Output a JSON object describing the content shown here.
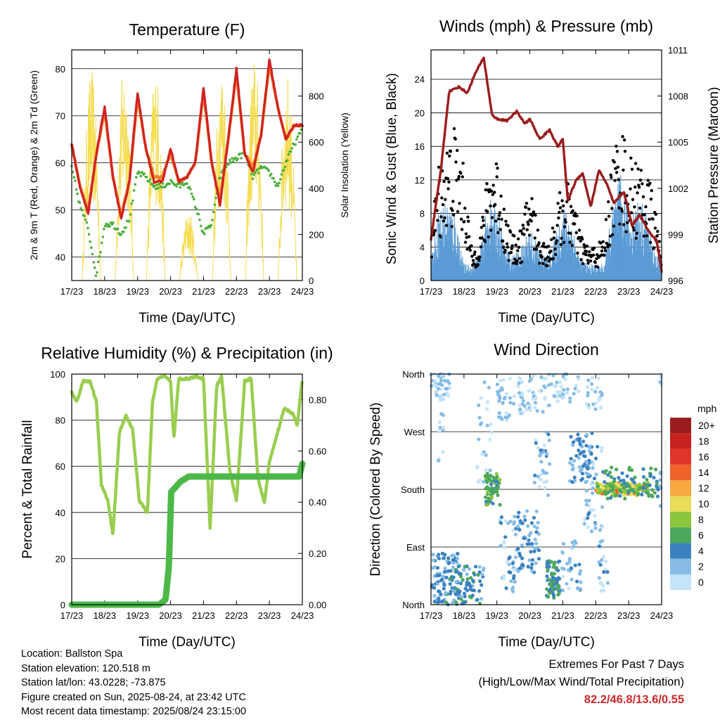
{
  "x_ticks": [
    "17/23",
    "18/23",
    "19/23",
    "20/23",
    "21/23",
    "22/23",
    "23/23",
    "24/23"
  ],
  "x_title": "Time (Day/UTC)",
  "colors": {
    "temp_red": "#d02222",
    "temp_orange": "#f0822a",
    "dewpoint_green": "#4caf3a",
    "solar_yellow": "#f5dc50",
    "wind_blue": "#5b9bd5",
    "gust_black": "#000000",
    "pressure_maroon": "#9b1c1c",
    "rh_green": "#9acd50",
    "precip_green": "#4cb848",
    "extremes_red": "#cc2a2a"
  },
  "chart_data": [
    {
      "id": "temperature",
      "type": "line",
      "title": "Temperature (F)",
      "ylabel": "2m & 9m T (Red, Orange) & 2m Td (Green)",
      "y2label": "Solar Insolation (Yellow)",
      "xlabel": "Time (Day/UTC)",
      "x": [
        0,
        0.25,
        0.5,
        0.75,
        1.0,
        1.25,
        1.5,
        1.75,
        2.0,
        2.25,
        2.5,
        2.75,
        3.0,
        3.25,
        3.5,
        3.75,
        4.0,
        4.25,
        4.5,
        4.75,
        5.0,
        5.25,
        5.5,
        5.75,
        6.0,
        6.25,
        6.5,
        6.75,
        7.0
      ],
      "ylim": [
        35,
        84
      ],
      "yticks": [
        40,
        50,
        60,
        70,
        80
      ],
      "y2lim": [
        0,
        1000
      ],
      "y2ticks": [
        0,
        200,
        400,
        600,
        800
      ],
      "series": [
        {
          "name": "2m T",
          "color": "#d02222",
          "values": [
            64,
            55,
            49,
            62,
            72,
            57,
            48,
            56,
            75,
            63,
            56,
            56,
            63,
            56,
            57,
            60,
            76,
            60,
            51,
            65,
            80,
            62,
            58,
            66,
            82,
            72,
            65,
            68,
            68
          ]
        },
        {
          "name": "9m T",
          "color": "#f0822a",
          "values": [
            64,
            55,
            50,
            62,
            71,
            57,
            49,
            56,
            74,
            63,
            57,
            57,
            62,
            56,
            57,
            60,
            75,
            60,
            52,
            65,
            79,
            62,
            59,
            66,
            81,
            72,
            65,
            68,
            68
          ]
        },
        {
          "name": "2m Td",
          "color": "#4caf3a",
          "values": [
            59,
            51,
            46,
            36,
            47,
            47,
            45,
            48,
            58,
            57,
            55,
            55,
            56,
            55,
            56,
            51,
            45,
            47,
            57,
            60,
            61,
            62,
            57,
            59,
            58,
            55,
            60,
            64,
            67
          ]
        },
        {
          "name": "Solar Insolation",
          "color": "#f5dc50",
          "axis": "y2",
          "peaks": [
            [
              0.6,
              920
            ],
            [
              1.6,
              950
            ],
            [
              2.55,
              930
            ],
            [
              3.55,
              300
            ],
            [
              4.55,
              950
            ],
            [
              5.55,
              980
            ],
            [
              6.55,
              900
            ]
          ]
        }
      ]
    },
    {
      "id": "winds",
      "type": "line",
      "title": "Winds (mph) & Pressure (mb)",
      "ylabel": "Sonic Wind & Gust (Blue, Black)",
      "y2label": "Station Pressure (Maroon)",
      "xlabel": "Time (Day/UTC)",
      "ylim": [
        0,
        27.5
      ],
      "yticks": [
        0,
        4,
        8,
        12,
        16,
        20,
        24
      ],
      "y2lim": [
        996,
        1011
      ],
      "y2ticks": [
        996,
        999,
        1002,
        1005,
        1008,
        1011
      ],
      "wind_envelope": [
        3,
        9,
        10,
        8,
        2,
        2,
        4,
        10,
        9,
        4,
        3,
        4,
        7,
        4,
        3,
        5,
        9,
        8,
        3,
        2,
        2,
        2,
        9,
        13,
        8,
        10,
        9,
        4,
        2
      ],
      "gust_envelope": [
        6,
        14,
        16,
        18,
        13,
        3,
        6,
        13,
        15,
        8,
        5,
        6,
        12,
        6,
        4,
        7,
        12,
        11,
        6,
        4,
        4,
        5,
        14,
        19,
        14,
        14,
        13,
        10,
        3
      ],
      "pressure": {
        "x": [
          0,
          0.3,
          0.55,
          0.85,
          1.1,
          1.35,
          1.6,
          1.85,
          2.0,
          2.3,
          2.6,
          2.85,
          3.0,
          3.3,
          3.6,
          3.85,
          4.0,
          4.15,
          4.4,
          4.6,
          4.85,
          5.1,
          5.35,
          5.55,
          5.85,
          6.1,
          6.35,
          6.6,
          6.85,
          7.0
        ],
        "values": [
          998.7,
          1003.2,
          1008.3,
          1008.6,
          1008.2,
          1009.5,
          1010.5,
          1006.8,
          1006.5,
          1006.4,
          1007.0,
          1006.2,
          1006.5,
          1005.2,
          1005.8,
          1004.7,
          1005.2,
          1001.2,
          1002.5,
          1003.0,
          1000.8,
          1003.2,
          1002.2,
          1001.0,
          1001.8,
          999.6,
          1000.3,
          999.2,
          998.6,
          996.6
        ]
      }
    },
    {
      "id": "humidity",
      "type": "line",
      "title": "Relative Humidity (%) & Precipitation (in)",
      "ylabel": "Percent & Total Rainfall",
      "xlabel": "Time (Day/UTC)",
      "ylim": [
        0,
        100
      ],
      "yticks": [
        0,
        20,
        40,
        60,
        80,
        100
      ],
      "y2lim": [
        0,
        0.9
      ],
      "y2ticks": [
        "0.00",
        "0.20",
        "0.40",
        "0.60",
        "0.80"
      ],
      "series": [
        {
          "name": "Relative Humidity",
          "color": "#9acd50",
          "x": [
            0,
            0.15,
            0.35,
            0.55,
            0.75,
            0.9,
            1.1,
            1.25,
            1.45,
            1.65,
            1.85,
            2.05,
            2.3,
            2.45,
            2.6,
            2.8,
            3.0,
            3.1,
            3.25,
            3.4,
            3.55,
            3.75,
            4.0,
            4.2,
            4.4,
            4.55,
            4.8,
            5.0,
            5.25,
            5.45,
            5.65,
            5.85,
            6.0,
            6.2,
            6.45,
            6.7,
            6.85,
            7.0
          ],
          "values": [
            92,
            88,
            97,
            97,
            88,
            52,
            45,
            30,
            75,
            82,
            76,
            45,
            40,
            88,
            98,
            99,
            97,
            72,
            98,
            98,
            98,
            99,
            98,
            33,
            95,
            99,
            58,
            45,
            97,
            98,
            55,
            44,
            62,
            72,
            85,
            83,
            78,
            98
          ]
        },
        {
          "name": "Total Rainfall",
          "color": "#4cb848",
          "axis": "y2",
          "x": [
            0,
            2.65,
            2.85,
            2.95,
            3.02,
            3.3,
            3.55,
            6.9,
            7.0
          ],
          "values": [
            0,
            0,
            0.02,
            0.15,
            0.44,
            0.48,
            0.5,
            0.5,
            0.55
          ]
        }
      ]
    },
    {
      "id": "direction",
      "type": "scatter",
      "title": "Wind Direction",
      "ylabel": "Direction (Colored By Speed)",
      "xlabel": "Time (Day/UTC)",
      "yticks": [
        "North",
        "East",
        "South",
        "West",
        "North"
      ],
      "colorbar": {
        "title": "mph",
        "labels": [
          "20+",
          "18",
          "16",
          "14",
          "12",
          "10",
          "8",
          "6",
          "4",
          "2",
          "0"
        ],
        "colors": [
          "#9b1c1c",
          "#c8221e",
          "#e0352a",
          "#f0642c",
          "#f8a840",
          "#e8dc58",
          "#8cc63c",
          "#4ca85a",
          "#3c82c0",
          "#86bce6",
          "#c4e4f8"
        ]
      }
    }
  ],
  "info": {
    "location": "Location: Ballston Spa",
    "elevation": "Station elevation: 120.518 m",
    "latlon": "Station lat/lon: 43.0228; -73.875",
    "created": "Figure created on Sun, 2025-08-24, at 23:42 UTC",
    "recent": "Most recent data timestamp: 2025/08/24 23:15:00"
  },
  "extremes": {
    "line1": "Extremes For Past 7 Days",
    "line2": "(High/Low/Max Wind/Total Precipitation)",
    "values": "82.2/46.8/13.6/0.55"
  }
}
